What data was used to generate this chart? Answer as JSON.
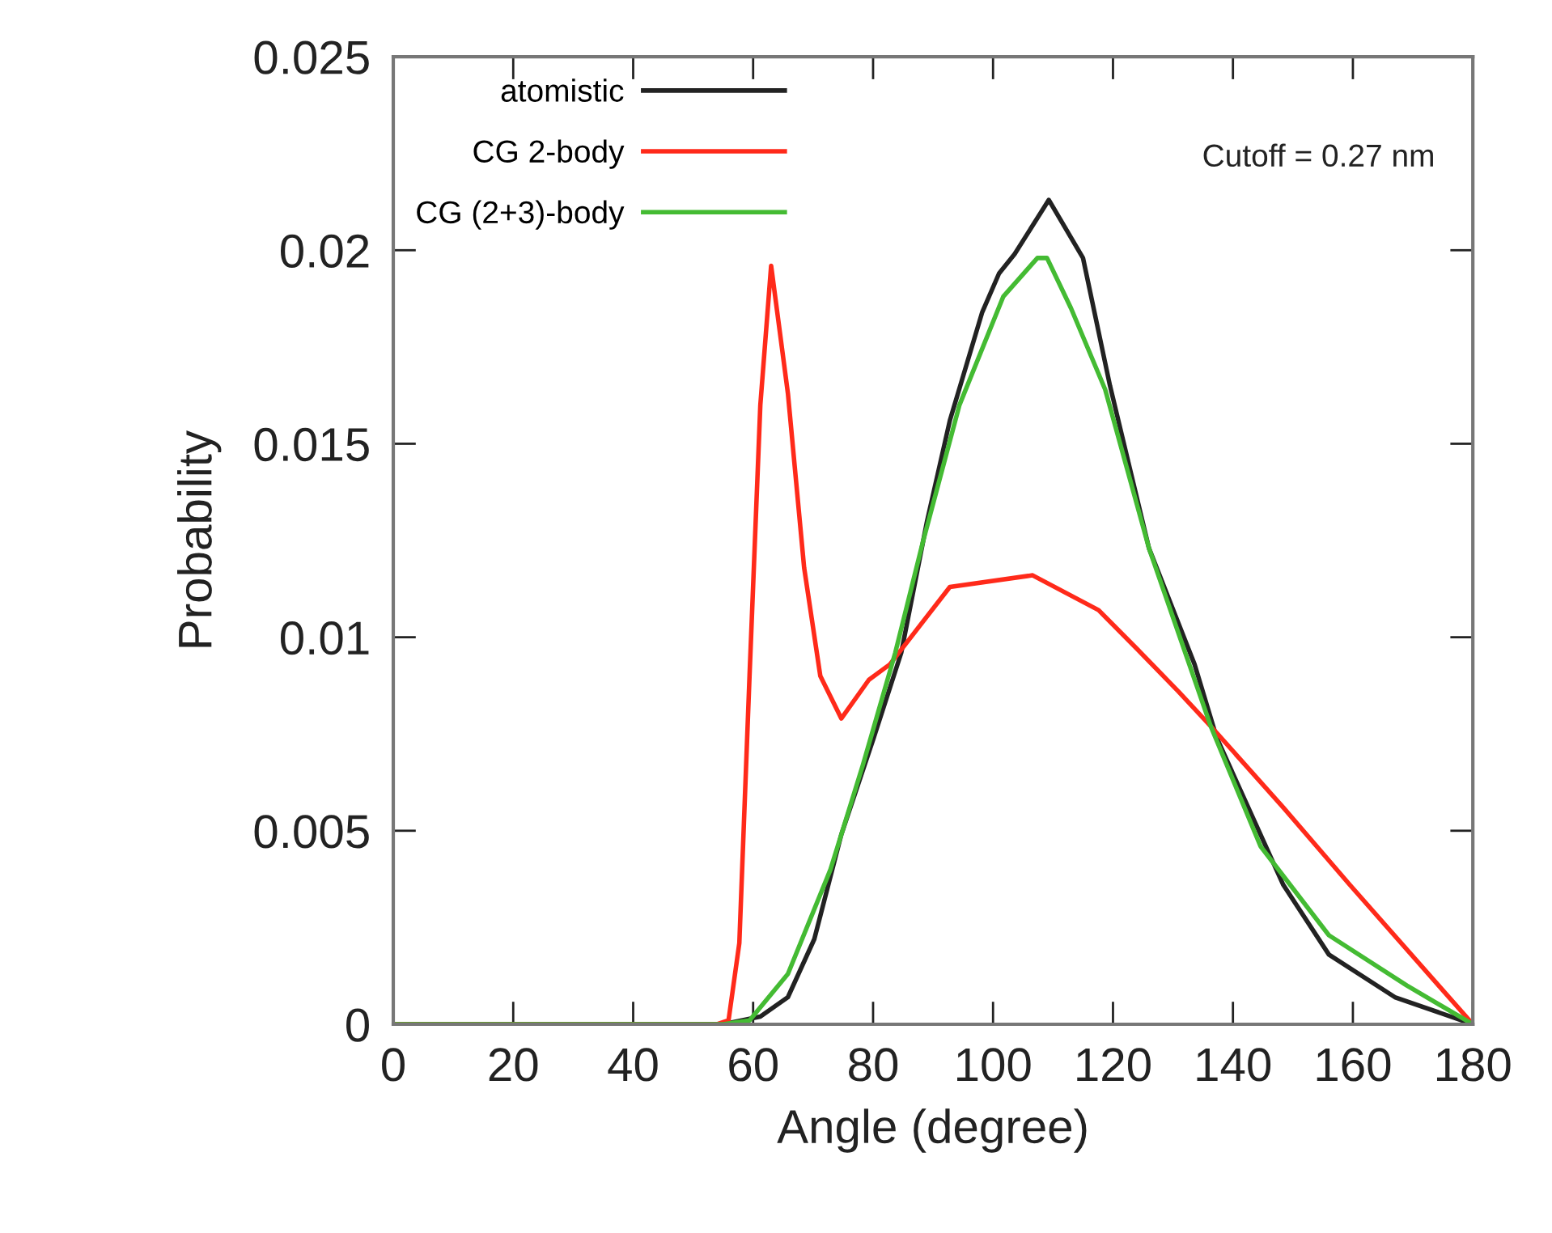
{
  "chart_data": {
    "type": "line",
    "xlabel": "Angle (degree)",
    "ylabel": "Probability",
    "xlim": [
      0,
      180
    ],
    "ylim": [
      0,
      0.025
    ],
    "xticks": [
      0,
      20,
      40,
      60,
      80,
      100,
      120,
      140,
      160,
      180
    ],
    "yticks": [
      0,
      {
        "value": 0.005,
        "label": "0.005"
      },
      {
        "value": 0.01,
        "label": "0.01"
      },
      {
        "value": 0.015,
        "label": "0.015"
      },
      {
        "value": 0.02,
        "label": "0.02"
      },
      {
        "value": 0.025,
        "label": "0.025"
      }
    ],
    "grid": false,
    "legend": "top left",
    "marker": "none",
    "line_style": "solid",
    "annotations": [
      "Cutoff = 0.27 nm"
    ],
    "series": [
      {
        "name": "atomistic",
        "color": "#222222",
        "x": [
          0,
          55,
          61.2,
          65.8,
          70.2,
          74.7,
          80.1,
          84.7,
          89,
          92.8,
          98.2,
          101,
          103.6,
          109.3,
          115,
          119.5,
          126,
          133.6,
          137.3,
          148.4,
          156,
          167,
          180
        ],
        "values": [
          0,
          0,
          0.0002,
          0.0007,
          0.0022,
          0.0049,
          0.0074,
          0.0096,
          0.013,
          0.0156,
          0.0184,
          0.0194,
          0.0199,
          0.0213,
          0.0198,
          0.0165,
          0.0123,
          0.0093,
          0.0074,
          0.0036,
          0.0018,
          0.0007,
          0
        ]
      },
      {
        "name": "CG 2-body",
        "color": "#ff2a1a",
        "x": [
          0,
          54,
          55.9,
          57.7,
          59.4,
          61.2,
          63,
          65.8,
          68.5,
          71.2,
          74.7,
          79.3,
          82.8,
          92.8,
          106.6,
          117.6,
          124,
          130.9,
          136.3,
          148.4,
          159.5,
          180
        ],
        "values": [
          0,
          0,
          0.0001,
          0.0021,
          0.009,
          0.016,
          0.0196,
          0.0163,
          0.0118,
          0.009,
          0.0079,
          0.0089,
          0.0093,
          0.0113,
          0.0116,
          0.0107,
          0.0097,
          0.0086,
          0.0077,
          0.0056,
          0.0036,
          0
        ]
      },
      {
        "name": "CG (2+3)-body",
        "color": "#44bb33",
        "x": [
          0,
          55,
          59.4,
          65.8,
          72.9,
          78.3,
          83.7,
          88.2,
          94.4,
          101.7,
          107.4,
          109,
          113,
          118.7,
          126,
          136.3,
          144.6,
          156,
          169,
          180
        ],
        "values": [
          0,
          0,
          0.0001,
          0.0013,
          0.004,
          0.0067,
          0.0096,
          0.0124,
          0.016,
          0.0188,
          0.0198,
          0.0198,
          0.0185,
          0.0164,
          0.0123,
          0.0077,
          0.0046,
          0.0023,
          0.001,
          0
        ]
      }
    ]
  }
}
